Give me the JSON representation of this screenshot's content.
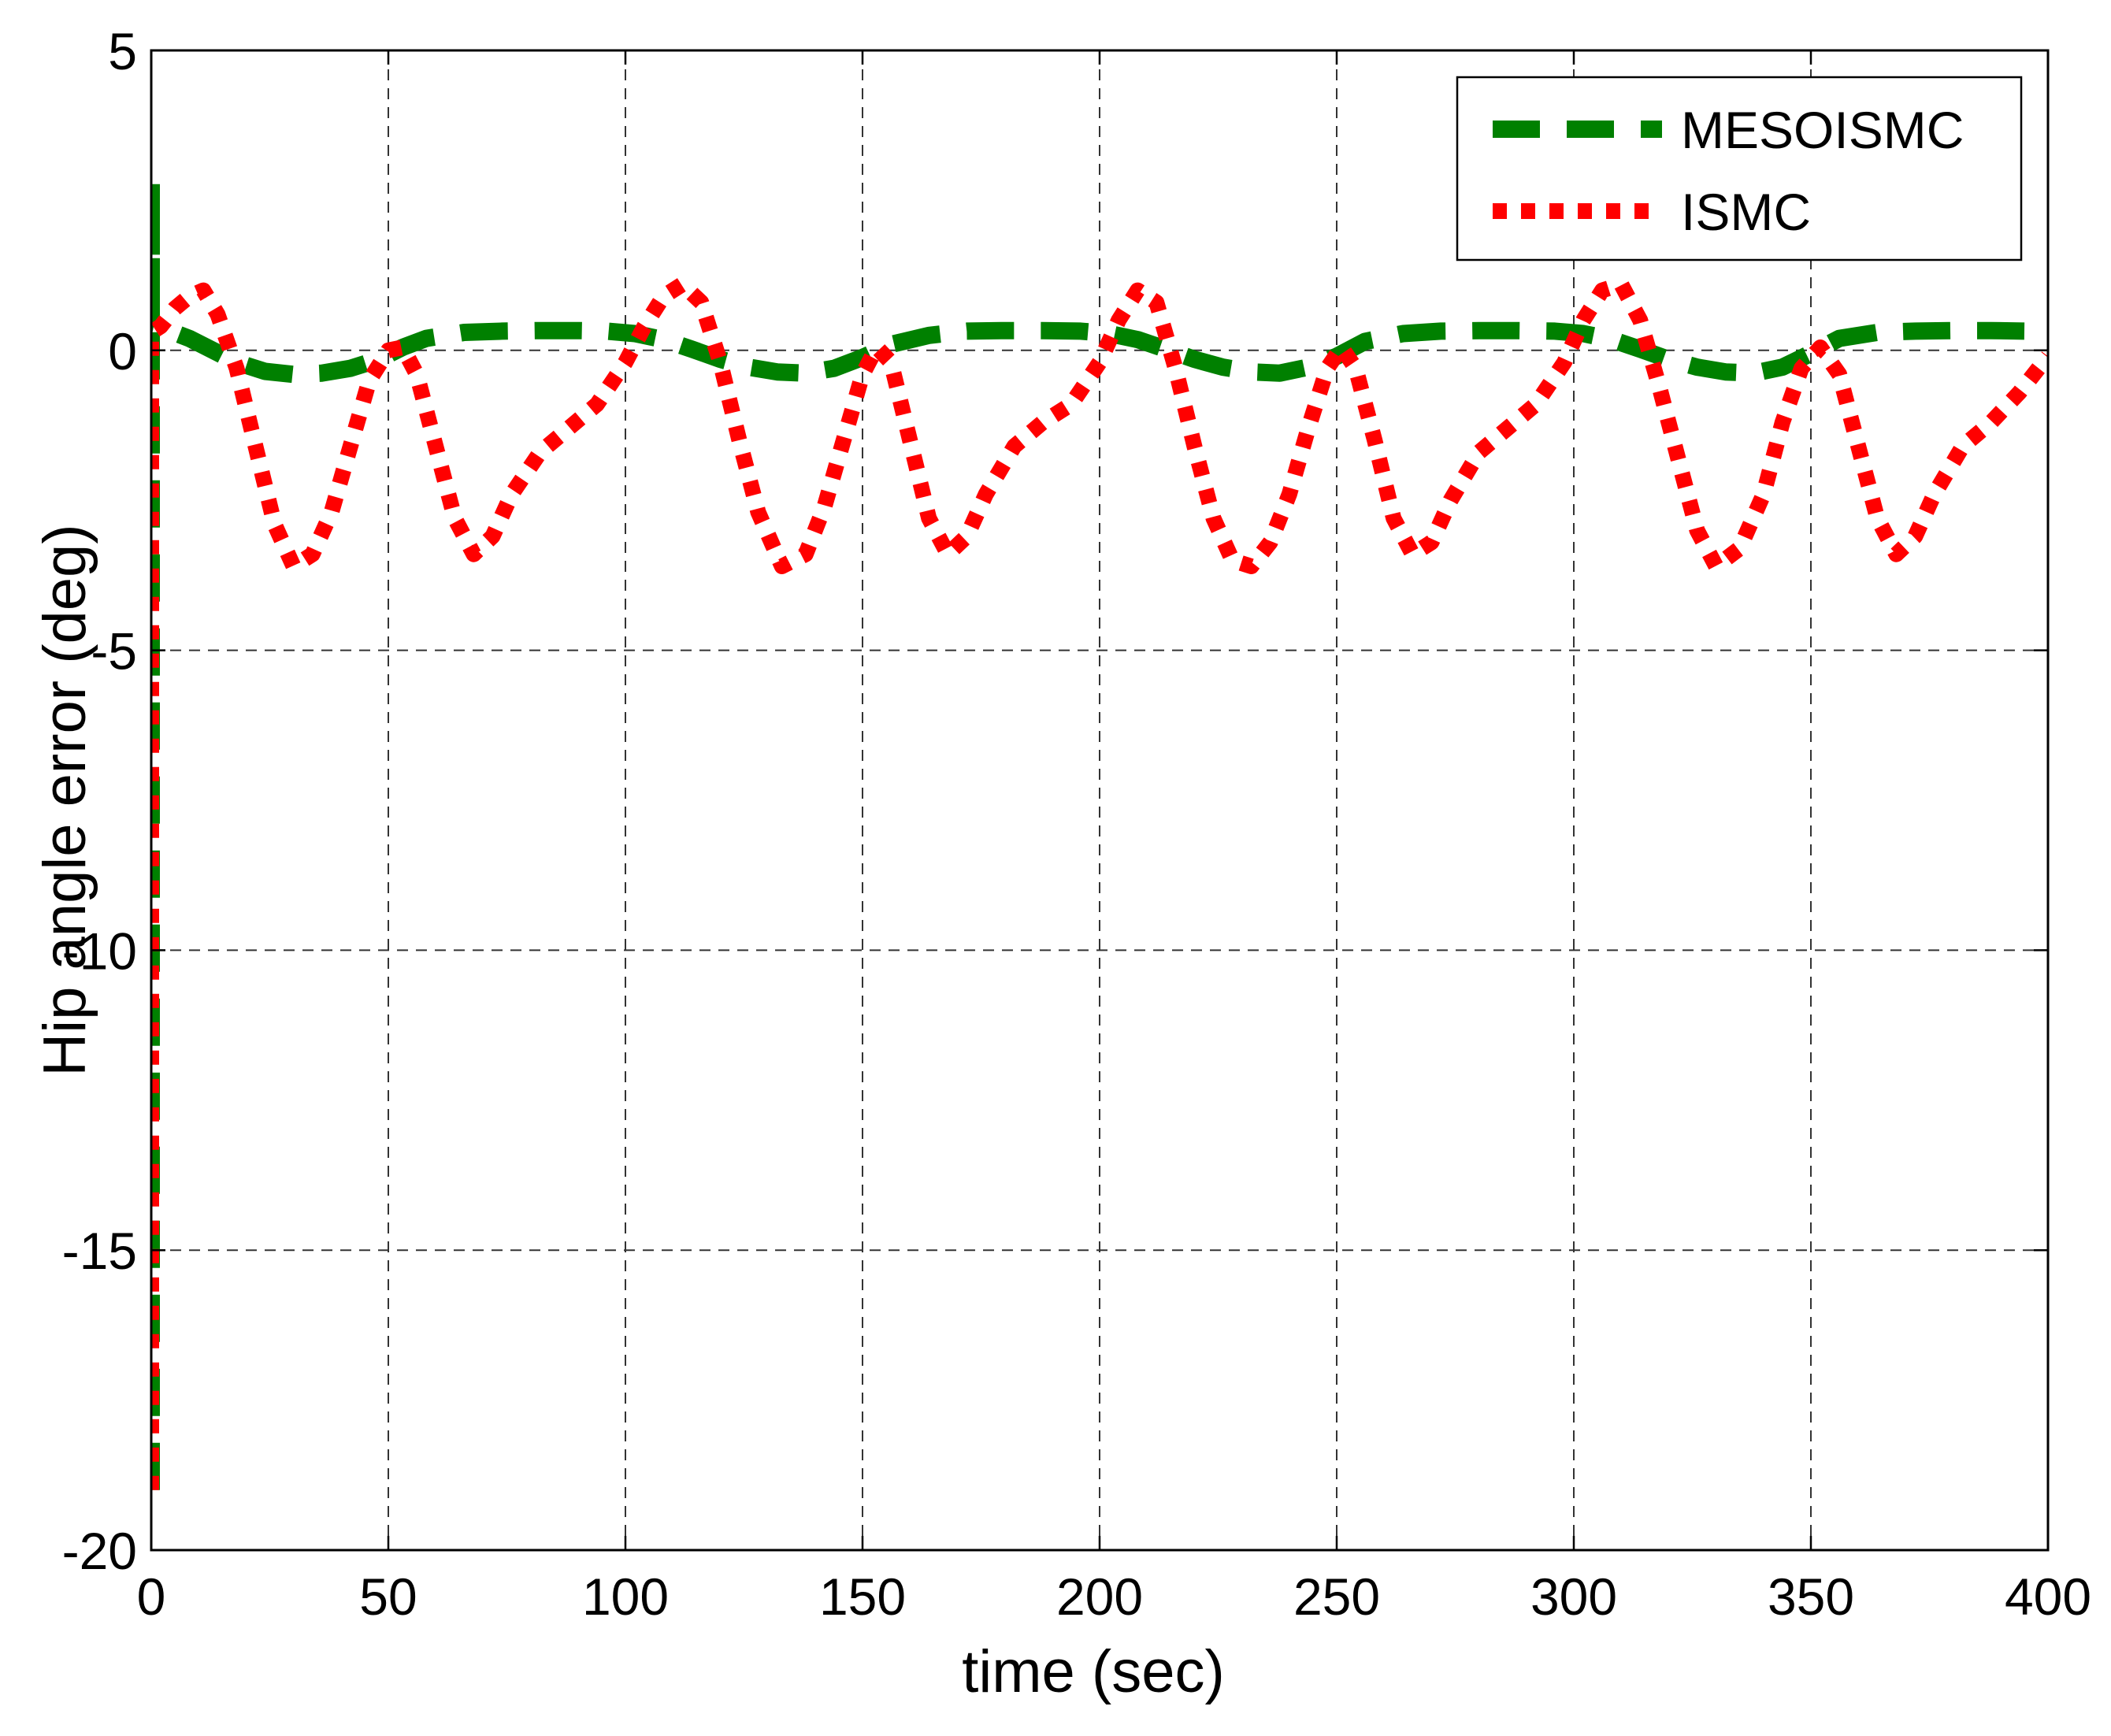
{
  "chart_data": {
    "type": "line",
    "xlabel": "time (sec)",
    "ylabel": "Hip angle error (deg)",
    "xlim": [
      0,
      400
    ],
    "ylim": [
      -20,
      5
    ],
    "xticks": [
      0,
      50,
      100,
      150,
      200,
      250,
      300,
      350,
      400
    ],
    "yticks": [
      5,
      0,
      -5,
      -10,
      -15,
      -20
    ],
    "xtick_labels": [
      "0",
      "50",
      "100",
      "150",
      "200",
      "250",
      "300",
      "350",
      "400"
    ],
    "ytick_labels": [
      "5",
      "0",
      "-5",
      "-10",
      "-15",
      "-20"
    ],
    "grid": true,
    "legend_position": "top-right",
    "series": [
      {
        "name": "MESOISMC",
        "color": "#008000",
        "style": "dashed",
        "x": [
          0,
          0,
          0,
          3,
          8,
          13,
          18,
          24,
          30,
          36,
          42,
          48,
          53,
          58,
          66,
          74,
          82,
          90,
          96,
          102,
          108,
          114,
          120,
          126,
          132,
          138,
          144,
          150,
          156,
          164,
          172,
          180,
          188,
          196,
          202,
          208,
          214,
          220,
          226,
          232,
          238,
          244,
          250,
          256,
          264,
          272,
          280,
          288,
          296,
          302,
          308,
          314,
          320,
          326,
          332,
          338,
          344,
          350,
          356,
          364,
          372,
          380,
          388,
          396,
          400
        ],
        "y": [
          -19,
          2.8,
          0.4,
          0.35,
          0.2,
          0.0,
          -0.2,
          -0.35,
          -0.4,
          -0.38,
          -0.3,
          -0.15,
          0.05,
          0.2,
          0.3,
          0.32,
          0.33,
          0.33,
          0.32,
          0.28,
          0.18,
          0.02,
          -0.15,
          -0.28,
          -0.36,
          -0.38,
          -0.3,
          -0.12,
          0.1,
          0.25,
          0.32,
          0.33,
          0.33,
          0.32,
          0.28,
          0.18,
          0.02,
          -0.15,
          -0.28,
          -0.36,
          -0.38,
          -0.28,
          -0.1,
          0.15,
          0.28,
          0.32,
          0.33,
          0.33,
          0.32,
          0.28,
          0.18,
          0.02,
          -0.15,
          -0.28,
          -0.36,
          -0.38,
          -0.28,
          -0.05,
          0.2,
          0.3,
          0.32,
          0.33,
          0.33,
          0.32,
          0.3
        ]
      },
      {
        "name": "ISMC",
        "color": "#ff0000",
        "style": "dotted",
        "x": [
          0,
          0,
          2,
          5,
          8,
          11,
          14,
          18,
          22,
          26,
          30,
          34,
          38,
          42,
          46,
          50,
          53,
          56,
          60,
          64,
          68,
          72,
          76,
          82,
          88,
          94,
          100,
          104,
          108,
          112,
          116,
          120,
          124,
          128,
          133,
          138,
          142,
          146,
          150,
          153,
          156,
          160,
          164,
          168,
          172,
          176,
          182,
          188,
          194,
          200,
          204,
          208,
          212,
          216,
          220,
          224,
          228,
          232,
          236,
          240,
          244,
          248,
          251,
          254,
          258,
          262,
          266,
          270,
          274,
          280,
          286,
          292,
          298,
          302,
          306,
          310,
          314,
          318,
          322,
          326,
          330,
          335,
          340,
          344,
          348,
          352,
          356,
          360,
          364,
          368,
          372,
          376,
          382,
          388,
          394,
          400
        ],
        "y": [
          -19,
          0.3,
          0.4,
          0.7,
          0.9,
          1.0,
          0.6,
          -0.3,
          -1.6,
          -2.9,
          -3.6,
          -3.4,
          -2.7,
          -1.6,
          -0.5,
          0.0,
          0.05,
          -0.4,
          -1.6,
          -2.8,
          -3.4,
          -3.1,
          -2.4,
          -1.7,
          -1.3,
          -0.9,
          -0.2,
          0.4,
          0.9,
          1.1,
          0.8,
          -0.2,
          -1.5,
          -2.7,
          -3.6,
          -3.4,
          -2.6,
          -1.5,
          -0.4,
          0.05,
          -0.2,
          -1.5,
          -2.8,
          -3.4,
          -3.1,
          -2.4,
          -1.6,
          -1.2,
          -0.9,
          -0.2,
          0.5,
          1.0,
          0.8,
          -0.3,
          -1.6,
          -2.8,
          -3.5,
          -3.6,
          -3.2,
          -2.4,
          -1.3,
          -0.3,
          0.05,
          -0.3,
          -1.5,
          -2.8,
          -3.4,
          -3.2,
          -2.5,
          -1.7,
          -1.3,
          -0.9,
          -0.2,
          0.5,
          1.0,
          1.1,
          0.5,
          -0.6,
          -1.8,
          -3.0,
          -3.6,
          -3.3,
          -2.4,
          -1.2,
          -0.3,
          0.05,
          -0.4,
          -1.6,
          -2.8,
          -3.4,
          -3.1,
          -2.4,
          -1.6,
          -1.2,
          -0.7,
          -0.1
        ]
      }
    ]
  }
}
